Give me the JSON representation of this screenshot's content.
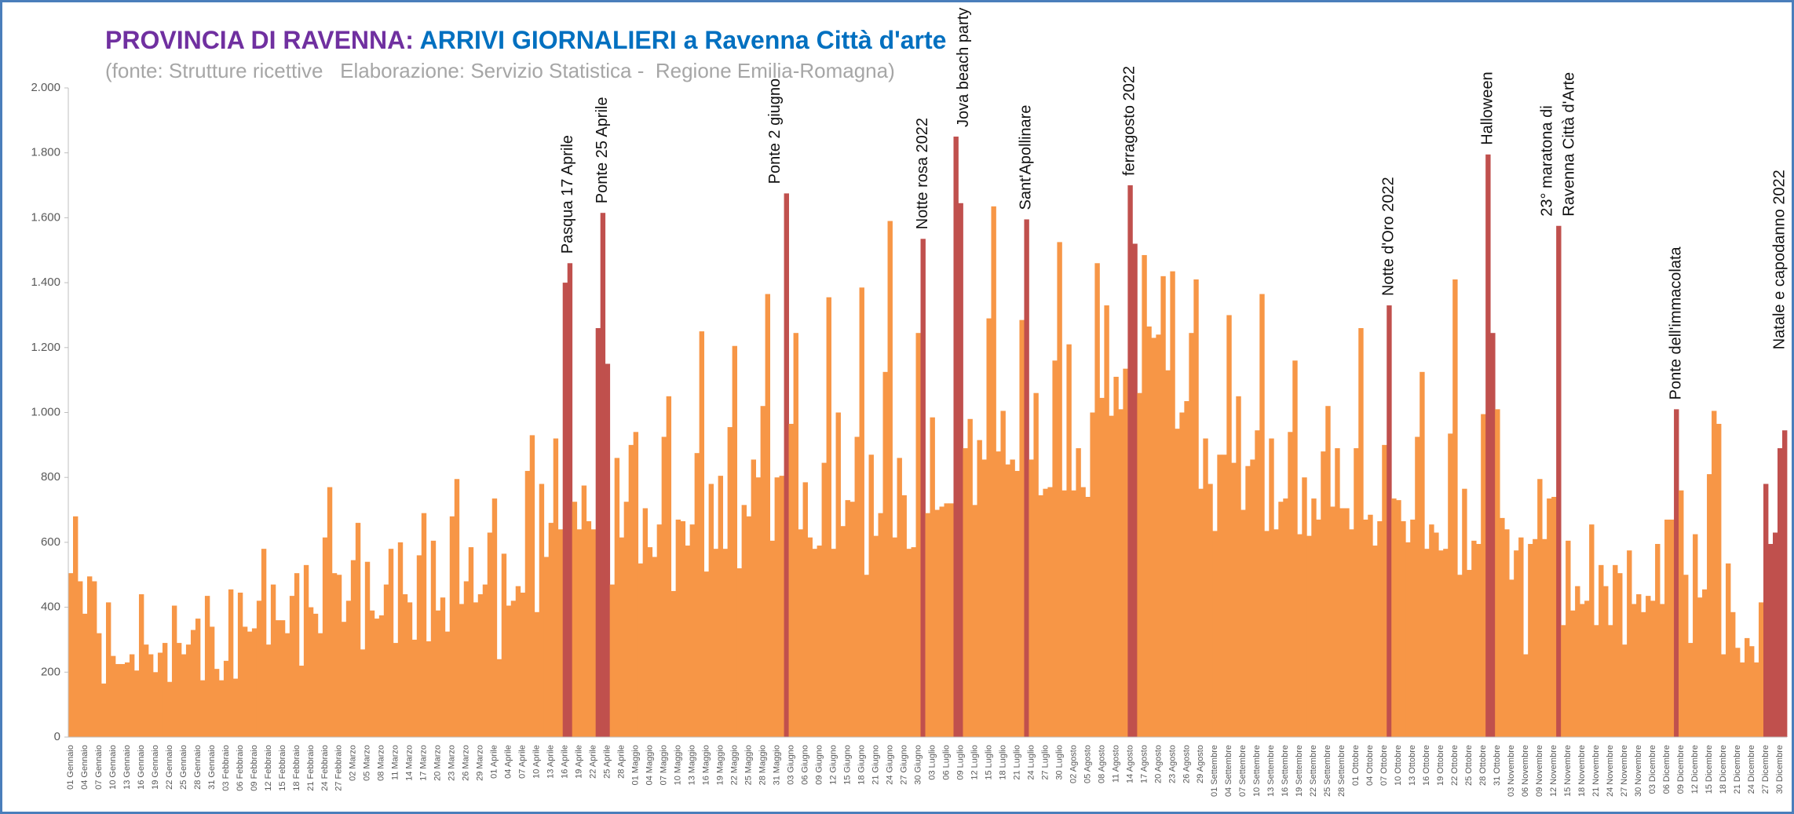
{
  "chart_data": {
    "type": "bar",
    "title_part1": "PROVINCIA DI RAVENNA:",
    "title_part2": "ARRIVI GIORNALIERI a Ravenna Città d'arte",
    "title_part1_color": "#7030a0",
    "title_part2_color": "#0070c0",
    "subtitle": "(fonte: Strutture ricettive   Elaborazione: Servizio Statistica -  Regione Emilia-Romagna)",
    "grid": false,
    "ylim": [
      0,
      2000
    ],
    "yticks": [
      0,
      200,
      400,
      600,
      800,
      {
        "value": 1000,
        "label": "1.000"
      },
      {
        "value": 1200,
        "label": "1.200"
      },
      {
        "value": 1400,
        "label": "1.400"
      },
      {
        "value": 1600,
        "label": "1.600"
      },
      {
        "value": 1800,
        "label": "1.800"
      },
      {
        "value": 2000,
        "label": "2.000"
      }
    ],
    "annotations": [
      "Pasqua 17 Aprile",
      "Ponte 25 Aprile",
      "Ponte 2 giugno",
      "Notte rosa 2022",
      "Jova beach party",
      "Sant'Apollinare",
      "ferragosto 2022",
      "Notte d'Oro 2022",
      "Halloween",
      "23° maratona di",
      "Ravenna Città d'Arte",
      "Ponte dell'immacolata",
      "Natale e capodanno 2022"
    ],
    "categories": [
      "01 Gennaio",
      null,
      null,
      "04 Gennaio",
      null,
      null,
      "07 Gennaio",
      null,
      null,
      "10 Gennaio",
      null,
      null,
      "13 Gennaio",
      null,
      null,
      "16 Gennaio",
      null,
      null,
      "19 Gennaio",
      null,
      null,
      "22 Gennaio",
      null,
      null,
      "25 Gennaio",
      null,
      null,
      "28 Gennaio",
      null,
      null,
      "31 Gennaio",
      null,
      null,
      "03 Febbraio",
      null,
      null,
      "06 Febbraio",
      null,
      null,
      "09 Febbraio",
      null,
      null,
      "12 Febbraio",
      null,
      null,
      "15 Febbraio",
      null,
      null,
      "18 Febbraio",
      null,
      null,
      "21 Febbraio",
      null,
      null,
      "24 Febbraio",
      null,
      null,
      "27 Febbraio",
      null,
      null,
      "02 Marzo",
      null,
      null,
      "05 Marzo",
      null,
      null,
      "08 Marzo",
      null,
      null,
      "11 Marzo",
      null,
      null,
      "14 Marzo",
      null,
      null,
      "17 Marzo",
      null,
      null,
      "20 Marzo",
      null,
      null,
      "23 Marzo",
      null,
      null,
      "26 Marzo",
      null,
      null,
      "29 Marzo",
      null,
      null,
      "01 Aprile",
      null,
      null,
      "04 Aprile",
      null,
      null,
      "07 Aprile",
      null,
      null,
      "10 Aprile",
      null,
      null,
      "13 Aprile",
      null,
      null,
      "16 Aprile",
      null,
      null,
      "19 Aprile",
      null,
      null,
      "22 Aprile",
      null,
      null,
      "25 Aprile",
      null,
      null,
      "28 Aprile",
      null,
      null,
      "01 Maggio",
      null,
      null,
      "04 Maggio",
      null,
      null,
      "07 Maggio",
      null,
      null,
      "10 Maggio",
      null,
      null,
      "13 Maggio",
      null,
      null,
      "16 Maggio",
      null,
      null,
      "19 Maggio",
      null,
      null,
      "22 Maggio",
      null,
      null,
      "25 Maggio",
      null,
      null,
      "28 Maggio",
      null,
      null,
      "31 Maggio",
      null,
      null,
      "03 Giugno",
      null,
      null,
      "06 Giugno",
      null,
      null,
      "09 Giugno",
      null,
      null,
      "12 Giugno",
      null,
      null,
      "15 Giugno",
      null,
      null,
      "18 Giugno",
      null,
      null,
      "21 Giugno",
      null,
      null,
      "24 Giugno",
      null,
      null,
      "27 Giugno",
      null,
      null,
      "30 Giugno",
      null,
      null,
      "03 Luglio",
      null,
      null,
      "06 Luglio",
      null,
      null,
      "09 Luglio",
      null,
      null,
      "12 Luglio",
      null,
      null,
      "15 Luglio",
      null,
      null,
      "18 Luglio",
      null,
      null,
      "21 Luglio",
      null,
      null,
      "24 Luglio",
      null,
      null,
      "27 Luglio",
      null,
      null,
      "30 Luglio",
      null,
      null,
      "02 Agosto",
      null,
      null,
      "05 Agosto",
      null,
      null,
      "08 Agosto",
      null,
      null,
      "11 Agosto",
      null,
      null,
      "14 Agosto",
      null,
      null,
      "17 Agosto",
      null,
      null,
      "20 Agosto",
      null,
      null,
      "23 Agosto",
      null,
      null,
      "26 Agosto",
      null,
      null,
      "29 Agosto",
      null,
      null,
      "01 Settembre",
      null,
      null,
      "04 Settembre",
      null,
      null,
      "07 Settembre",
      null,
      null,
      "10 Settembre",
      null,
      null,
      "13 Settembre",
      null,
      null,
      "16 Settembre",
      null,
      null,
      "19 Settembre",
      null,
      null,
      "22 Settembre",
      null,
      null,
      "25 Settembre",
      null,
      null,
      "28 Settembre",
      null,
      null,
      "01 Ottobre",
      null,
      null,
      "04 Ottobre",
      null,
      null,
      "07 Ottobre",
      null,
      null,
      "10 Ottobre",
      null,
      null,
      "13 Ottobre",
      null,
      null,
      "16 Ottobre",
      null,
      null,
      "19 Ottobre",
      null,
      null,
      "22 Ottobre",
      null,
      null,
      "25 Ottobre",
      null,
      null,
      "28 Ottobre",
      null,
      null,
      "31 Ottobre",
      null,
      null,
      "03 Novembre",
      null,
      null,
      "06 Novembre",
      null,
      null,
      "09 Novembre",
      null,
      null,
      "12 Novembre",
      null,
      null,
      "15 Novembre",
      null,
      null,
      "18 Novembre",
      null,
      null,
      "21 Novembre",
      null,
      null,
      "24 Novembre",
      null,
      null,
      "27 Novembre",
      null,
      null,
      "30 Novembre",
      null,
      null,
      "03 Dicembre",
      null,
      null,
      "06 Dicembre",
      null,
      null,
      "09 Dicembre",
      null,
      null,
      "12 Dicembre",
      null,
      null,
      "15 Dicembre",
      null,
      null,
      "18 Dicembre",
      null,
      null,
      "21 Dicembre",
      null,
      null,
      "24 Dicembre",
      null,
      null,
      "27 Dicembre",
      null,
      null,
      "30 Dicembre",
      null
    ],
    "values": [
      505,
      680,
      480,
      380,
      495,
      480,
      320,
      165,
      415,
      250,
      225,
      225,
      230,
      255,
      205,
      440,
      285,
      255,
      200,
      260,
      290,
      170,
      405,
      290,
      255,
      285,
      330,
      365,
      175,
      435,
      340,
      210,
      175,
      235,
      455,
      180,
      445,
      340,
      325,
      335,
      420,
      580,
      285,
      470,
      360,
      360,
      320,
      435,
      505,
      220,
      530,
      400,
      380,
      320,
      615,
      770,
      505,
      500,
      355,
      420,
      545,
      660,
      270,
      540,
      390,
      365,
      375,
      470,
      580,
      290,
      600,
      440,
      415,
      300,
      560,
      690,
      295,
      605,
      390,
      430,
      325,
      680,
      795,
      410,
      480,
      585,
      415,
      440,
      470,
      630,
      735,
      240,
      565,
      405,
      420,
      465,
      445,
      820,
      930,
      385,
      780,
      555,
      660,
      920,
      640,
      1400,
      1460,
      725,
      640,
      775,
      665,
      640,
      1260,
      1615,
      1150,
      470,
      860,
      615,
      725,
      900,
      940,
      535,
      705,
      585,
      555,
      655,
      925,
      1050,
      450,
      670,
      665,
      590,
      655,
      875,
      1250,
      510,
      780,
      580,
      805,
      580,
      955,
      1205,
      520,
      715,
      680,
      855,
      800,
      1020,
      1365,
      605,
      800,
      805,
      1675,
      965,
      1245,
      640,
      785,
      615,
      580,
      590,
      845,
      1355,
      580,
      1000,
      650,
      730,
      725,
      925,
      1385,
      500,
      870,
      620,
      690,
      1125,
      1590,
      615,
      860,
      745,
      580,
      585,
      1245,
      1535,
      690,
      985,
      700,
      710,
      720,
      720,
      1850,
      1645,
      890,
      980,
      715,
      915,
      855,
      1290,
      1635,
      880,
      1005,
      840,
      855,
      820,
      1285,
      1595,
      855,
      1060,
      745,
      765,
      770,
      1160,
      1525,
      760,
      1210,
      760,
      890,
      770,
      740,
      1000,
      1460,
      1045,
      1330,
      990,
      1110,
      1010,
      1135,
      1700,
      1520,
      1060,
      1485,
      1265,
      1230,
      1240,
      1420,
      1130,
      1435,
      950,
      1000,
      1035,
      1245,
      1410,
      765,
      920,
      780,
      635,
      870,
      870,
      1300,
      845,
      1050,
      700,
      835,
      855,
      945,
      1365,
      635,
      920,
      640,
      725,
      735,
      940,
      1160,
      625,
      800,
      620,
      735,
      670,
      880,
      1020,
      710,
      890,
      705,
      705,
      640,
      890,
      1260,
      670,
      685,
      590,
      665,
      900,
      1330,
      735,
      730,
      665,
      600,
      670,
      925,
      1125,
      580,
      655,
      630,
      575,
      580,
      935,
      1410,
      500,
      765,
      515,
      605,
      595,
      995,
      1795,
      1245,
      1010,
      675,
      640,
      485,
      575,
      615,
      255,
      595,
      610,
      795,
      610,
      735,
      740,
      1575,
      345,
      605,
      390,
      465,
      410,
      420,
      655,
      345,
      530,
      465,
      345,
      530,
      505,
      285,
      575,
      410,
      440,
      385,
      435,
      420,
      595,
      410,
      670,
      670,
      1010,
      760,
      500,
      290,
      625,
      430,
      455,
      810,
      1005,
      965,
      255,
      535,
      385,
      275,
      230,
      305,
      280,
      230,
      415,
      780,
      595,
      630,
      890,
      945
    ],
    "colors": [
      "#f79646",
      "#f79646",
      "#f79646",
      "#f79646",
      "#f79646",
      "#f79646",
      "#f79646",
      "#f79646",
      "#f79646",
      "#f79646",
      "#f79646",
      "#f79646",
      "#f79646",
      "#f79646",
      "#f79646",
      "#f79646",
      "#f79646",
      "#f79646",
      "#f79646",
      "#f79646",
      "#f79646",
      "#f79646",
      "#f79646",
      "#f79646",
      "#f79646",
      "#f79646",
      "#f79646",
      "#f79646",
      "#f79646",
      "#f79646",
      "#f79646",
      "#f79646",
      "#f79646",
      "#f79646",
      "#f79646",
      "#f79646",
      "#f79646",
      "#f79646",
      "#f79646",
      "#f79646",
      "#f79646",
      "#f79646",
      "#f79646",
      "#f79646",
      "#f79646",
      "#f79646",
      "#f79646",
      "#f79646",
      "#f79646",
      "#f79646",
      "#f79646",
      "#f79646",
      "#f79646",
      "#f79646",
      "#f79646",
      "#f79646",
      "#f79646",
      "#f79646",
      "#f79646",
      "#f79646",
      "#f79646",
      "#f79646",
      "#f79646",
      "#f79646",
      "#f79646",
      "#f79646",
      "#f79646",
      "#f79646",
      "#f79646",
      "#f79646",
      "#f79646",
      "#f79646",
      "#f79646",
      "#f79646",
      "#f79646",
      "#f79646",
      "#f79646",
      "#f79646",
      "#f79646",
      "#f79646",
      "#f79646",
      "#f79646",
      "#f79646",
      "#f79646",
      "#f79646",
      "#f79646",
      "#f79646",
      "#f79646",
      "#f79646",
      "#f79646",
      "#f79646",
      "#f79646",
      "#f79646",
      "#f79646",
      "#f79646",
      "#f79646",
      "#f79646",
      "#f79646",
      "#f79646",
      "#f79646",
      "#f79646",
      "#f79646",
      "#f79646",
      "#f79646",
      "#f79646",
      "#c0504d",
      "#c0504d",
      "#f79646",
      "#f79646",
      "#f79646",
      "#f79646",
      "#f79646",
      "#c0504d",
      "#c0504d",
      "#c0504d",
      "#f79646",
      "#f79646",
      "#f79646",
      "#f79646",
      "#f79646",
      "#f79646",
      "#f79646",
      "#f79646",
      "#f79646",
      "#f79646",
      "#f79646",
      "#f79646",
      "#f79646",
      "#f79646",
      "#f79646",
      "#f79646",
      "#f79646",
      "#f79646",
      "#f79646",
      "#f79646",
      "#f79646",
      "#f79646",
      "#f79646",
      "#f79646",
      "#f79646",
      "#f79646",
      "#f79646",
      "#f79646",
      "#f79646",
      "#f79646",
      "#f79646",
      "#f79646",
      "#f79646",
      "#f79646",
      "#f79646",
      "#f79646",
      "#f79646",
      "#c0504d",
      "#f79646",
      "#f79646",
      "#f79646",
      "#f79646",
      "#f79646",
      "#f79646",
      "#f79646",
      "#f79646",
      "#f79646",
      "#f79646",
      "#f79646",
      "#f79646",
      "#f79646",
      "#f79646",
      "#f79646",
      "#f79646",
      "#f79646",
      "#f79646",
      "#f79646",
      "#f79646",
      "#f79646",
      "#f79646",
      "#f79646",
      "#f79646",
      "#f79646",
      "#f79646",
      "#f79646",
      "#f79646",
      "#c0504d",
      "#f79646",
      "#f79646",
      "#f79646",
      "#f79646",
      "#f79646",
      "#f79646",
      "#c0504d",
      "#c0504d",
      "#f79646",
      "#f79646",
      "#f79646",
      "#f79646",
      "#f79646",
      "#f79646",
      "#f79646",
      "#f79646",
      "#f79646",
      "#f79646",
      "#f79646",
      "#f79646",
      "#f79646",
      "#c0504d",
      "#f79646",
      "#f79646",
      "#f79646",
      "#f79646",
      "#f79646",
      "#f79646",
      "#f79646",
      "#f79646",
      "#f79646",
      "#f79646",
      "#f79646",
      "#f79646",
      "#f79646",
      "#f79646",
      "#f79646",
      "#f79646",
      "#f79646",
      "#f79646",
      "#f79646",
      "#f79646",
      "#f79646",
      "#c0504d",
      "#c0504d",
      "#f79646",
      "#f79646",
      "#f79646",
      "#f79646",
      "#f79646",
      "#f79646",
      "#f79646",
      "#f79646",
      "#f79646",
      "#f79646",
      "#f79646",
      "#f79646",
      "#f79646",
      "#f79646",
      "#f79646",
      "#f79646",
      "#f79646",
      "#f79646",
      "#f79646",
      "#f79646",
      "#f79646",
      "#f79646",
      "#f79646",
      "#f79646",
      "#f79646",
      "#f79646",
      "#f79646",
      "#f79646",
      "#f79646",
      "#f79646",
      "#f79646",
      "#f79646",
      "#f79646",
      "#f79646",
      "#f79646",
      "#f79646",
      "#f79646",
      "#f79646",
      "#f79646",
      "#f79646",
      "#f79646",
      "#f79646",
      "#f79646",
      "#f79646",
      "#f79646",
      "#f79646",
      "#f79646",
      "#f79646",
      "#f79646",
      "#f79646",
      "#f79646",
      "#f79646",
      "#f79646",
      "#c0504d",
      "#f79646",
      "#f79646",
      "#f79646",
      "#f79646",
      "#f79646",
      "#f79646",
      "#f79646",
      "#f79646",
      "#f79646",
      "#f79646",
      "#f79646",
      "#f79646",
      "#f79646",
      "#f79646",
      "#f79646",
      "#f79646",
      "#f79646",
      "#f79646",
      "#f79646",
      "#f79646",
      "#c0504d",
      "#c0504d",
      "#f79646",
      "#f79646",
      "#f79646",
      "#f79646",
      "#f79646",
      "#f79646",
      "#f79646",
      "#f79646",
      "#f79646",
      "#f79646",
      "#f79646",
      "#f79646",
      "#f79646",
      "#c0504d",
      "#f79646",
      "#f79646",
      "#f79646",
      "#f79646",
      "#f79646",
      "#f79646",
      "#f79646",
      "#f79646",
      "#f79646",
      "#f79646",
      "#f79646",
      "#f79646",
      "#f79646",
      "#f79646",
      "#f79646",
      "#f79646",
      "#f79646",
      "#f79646",
      "#f79646",
      "#f79646",
      "#f79646",
      "#f79646",
      "#f79646",
      "#f79646",
      "#c0504d",
      "#f79646",
      "#f79646",
      "#f79646",
      "#f79646",
      "#f79646",
      "#f79646",
      "#f79646",
      "#f79646",
      "#f79646",
      "#f79646",
      "#f79646",
      "#f79646",
      "#f79646",
      "#f79646",
      "#f79646",
      "#f79646",
      "#f79646",
      "#f79646",
      "#c0504d",
      "#c0504d",
      "#c0504d",
      "#c0504d",
      "#c0504d"
    ]
  }
}
